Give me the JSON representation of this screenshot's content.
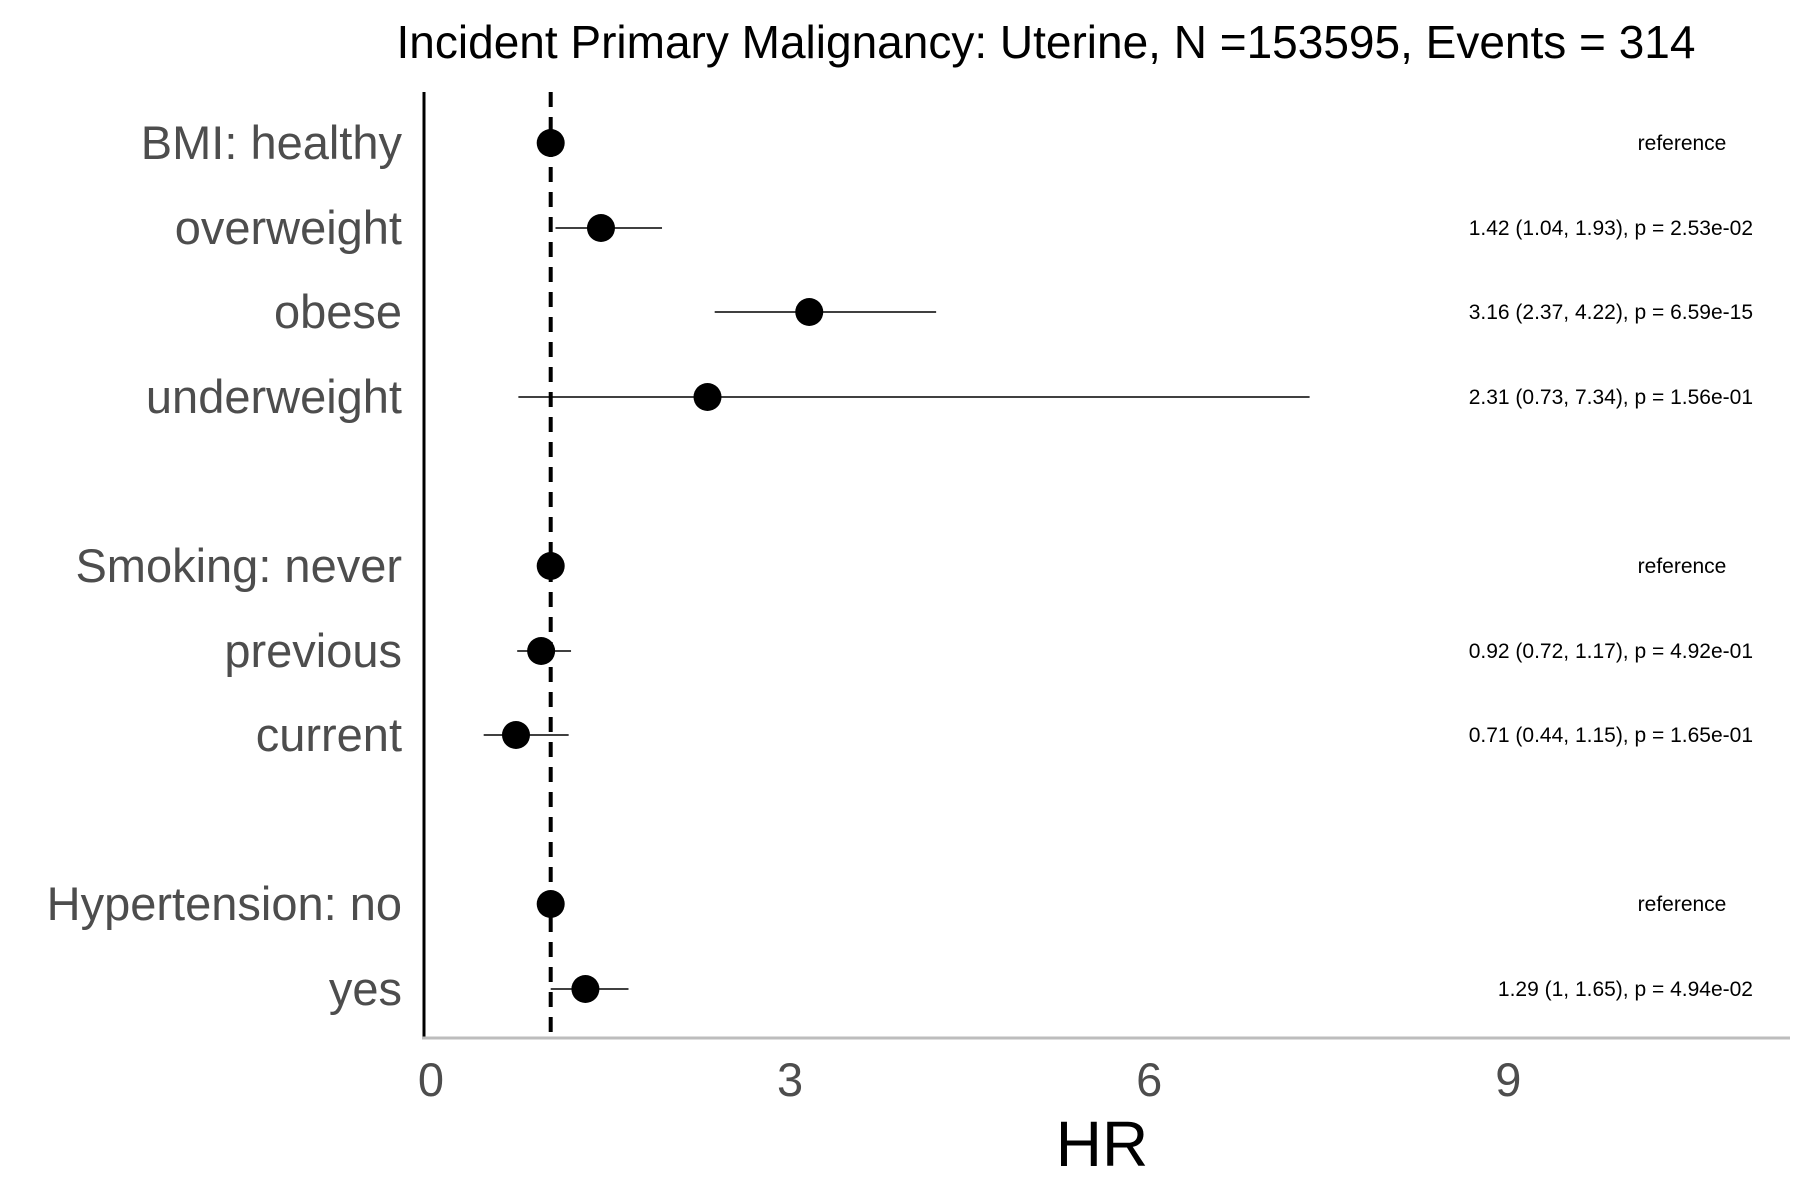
{
  "chart_data": {
    "type": "forest",
    "title": "Incident Primary Malignancy: Uterine, N =153595, Events = 314",
    "xlabel": "HR",
    "xlim": [
      0,
      11.3
    ],
    "xticks": [
      0,
      3,
      6,
      9
    ],
    "reference_line": 1,
    "grid": false,
    "rows": [
      {
        "label": "BMI: healthy",
        "hr": 1.0,
        "lower": null,
        "upper": null,
        "annotation": "reference"
      },
      {
        "label": "overweight",
        "hr": 1.42,
        "lower": 1.04,
        "upper": 1.93,
        "annotation": "1.42 (1.04, 1.93), p = 2.53e-02"
      },
      {
        "label": "obese",
        "hr": 3.16,
        "lower": 2.37,
        "upper": 4.22,
        "annotation": "3.16 (2.37, 4.22), p = 6.59e-15"
      },
      {
        "label": "underweight",
        "hr": 2.31,
        "lower": 0.73,
        "upper": 7.34,
        "annotation": "2.31 (0.73, 7.34), p = 1.56e-01"
      },
      {
        "label": "Smoking: never",
        "hr": 1.0,
        "lower": null,
        "upper": null,
        "annotation": "reference"
      },
      {
        "label": "previous",
        "hr": 0.92,
        "lower": 0.72,
        "upper": 1.17,
        "annotation": "0.92 (0.72, 1.17), p = 4.92e-01"
      },
      {
        "label": "current",
        "hr": 0.71,
        "lower": 0.44,
        "upper": 1.15,
        "annotation": "0.71 (0.44, 1.15), p = 1.65e-01"
      },
      {
        "label": "Hypertension: no",
        "hr": 1.0,
        "lower": null,
        "upper": null,
        "annotation": "reference"
      },
      {
        "label": "yes",
        "hr": 1.29,
        "lower": 1.0,
        "upper": 1.65,
        "annotation": "1.29 (1, 1.65), p = 4.94e-02"
      }
    ]
  }
}
